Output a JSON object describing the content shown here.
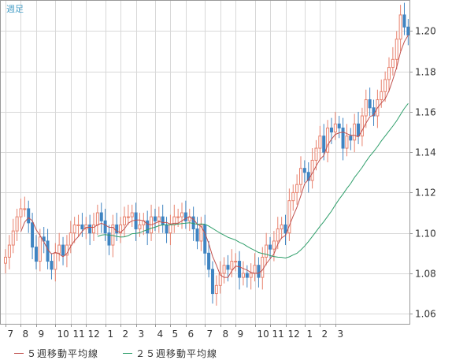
{
  "chart_data": {
    "type": "candlestick",
    "title": "週足",
    "ylim": [
      1.055,
      1.215
    ],
    "y_ticks": [
      "1.06",
      "1.08",
      "1.10",
      "1.12",
      "1.14",
      "1.16",
      "1.18",
      "1.20"
    ],
    "x_tick_labels": [
      "7",
      "8",
      "9",
      "10",
      "11",
      "12",
      "1",
      "2",
      "3",
      "4",
      "5",
      "6",
      "7",
      "8",
      "9",
      "10",
      "11",
      "12",
      "1",
      "2",
      "3"
    ],
    "x_tick_weeks": [
      0,
      4,
      8,
      13,
      17,
      21,
      26,
      30,
      34,
      39,
      43,
      47,
      52,
      56,
      60,
      65,
      69,
      73,
      78,
      82,
      86
    ],
    "grid": true,
    "series": [
      {
        "name": "５週移動平均線",
        "color": "#c0504d"
      },
      {
        "name": "２５週移動平均線",
        "color": "#2e9e6a"
      }
    ],
    "colors": {
      "up": "#e8826e",
      "down": "#3f84c2",
      "frame": "#999999",
      "grid": "#d8d8d8",
      "title": "#4aa0c8"
    },
    "closes": [
      1.088,
      1.094,
      1.101,
      1.108,
      1.112,
      1.112,
      1.105,
      1.093,
      1.086,
      1.098,
      1.096,
      1.086,
      1.082,
      1.09,
      1.094,
      1.089,
      1.094,
      1.1,
      1.104,
      1.104,
      1.102,
      1.104,
      1.1,
      1.104,
      1.11,
      1.106,
      1.1,
      1.094,
      1.104,
      1.1,
      1.104,
      1.108,
      1.108,
      1.11,
      1.102,
      1.104,
      1.106,
      1.1,
      1.108,
      1.106,
      1.108,
      1.104,
      1.1,
      1.104,
      1.108,
      1.108,
      1.11,
      1.106,
      1.108,
      1.102,
      1.096,
      1.104,
      1.09,
      1.082,
      1.07,
      1.074,
      1.08,
      1.084,
      1.082,
      1.086,
      1.086,
      1.078,
      1.08,
      1.078,
      1.08,
      1.084,
      1.078,
      1.088,
      1.094,
      1.092,
      1.096,
      1.102,
      1.104,
      1.1,
      1.116,
      1.12,
      1.124,
      1.132,
      1.13,
      1.126,
      1.136,
      1.142,
      1.148,
      1.14,
      1.152,
      1.15,
      1.154,
      1.152,
      1.142,
      1.148,
      1.146,
      1.154,
      1.148,
      1.158,
      1.166,
      1.162,
      1.158,
      1.166,
      1.17,
      1.176,
      1.182,
      1.186,
      1.196,
      1.208,
      1.202,
      1.198
    ]
  },
  "legend": {
    "ma5": "５週移動平均線",
    "ma25": "２５週移動平均線"
  }
}
